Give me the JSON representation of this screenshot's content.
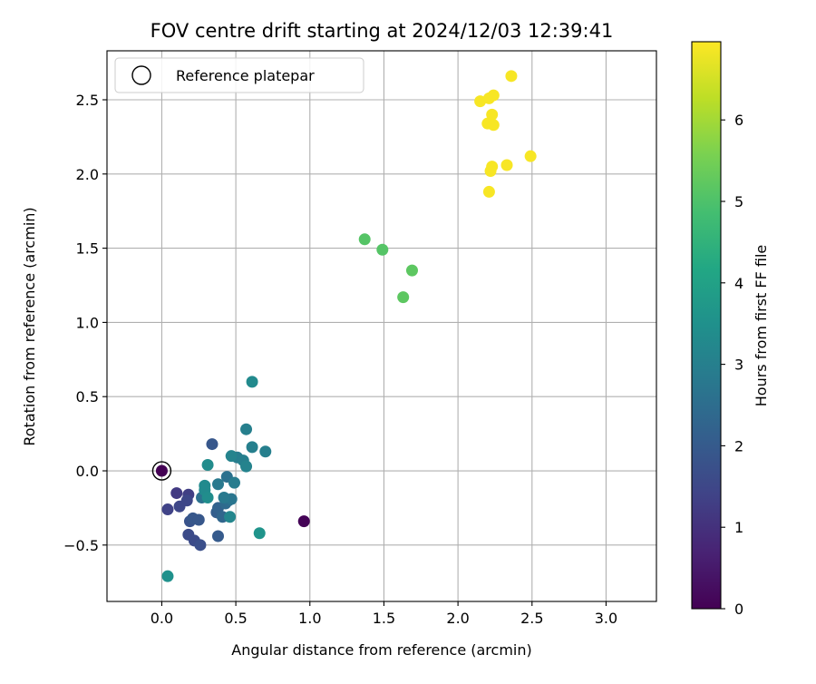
{
  "chart_data": {
    "type": "scatter",
    "title": "FOV centre drift starting at 2024/12/03 12:39:41",
    "xlabel": "Angular distance from reference (arcmin)",
    "ylabel": "Rotation from reference (arcmin)",
    "xlim": [
      -0.37,
      3.34
    ],
    "ylim": [
      -0.88,
      2.83
    ],
    "xticks": [
      0.0,
      0.5,
      1.0,
      1.5,
      2.0,
      2.5,
      3.0
    ],
    "xtick_labels": [
      "0.0",
      "0.5",
      "1.0",
      "1.5",
      "2.0",
      "2.5",
      "3.0"
    ],
    "yticks": [
      -0.5,
      0.0,
      0.5,
      1.0,
      1.5,
      2.0,
      2.5
    ],
    "ytick_labels": [
      "−0.5",
      "0.0",
      "0.5",
      "1.0",
      "1.5",
      "2.0",
      "2.5"
    ],
    "grid": true,
    "legend": {
      "position": "upper-left",
      "label": "Reference platepar"
    },
    "reference_point": {
      "x": 0.0,
      "y": 0.0
    },
    "colormap": "viridis",
    "colorbar": {
      "label": "Hours from first FF file",
      "range": [
        0,
        6.96
      ],
      "ticks": [
        0,
        1,
        2,
        3,
        4,
        5,
        6
      ],
      "tick_labels": [
        "0",
        "1",
        "2",
        "3",
        "4",
        "5",
        "6"
      ]
    },
    "points": [
      {
        "x": 0.0,
        "y": 0.0,
        "c": 0.0
      },
      {
        "x": 0.96,
        "y": -0.34,
        "c": 0.05
      },
      {
        "x": 0.1,
        "y": -0.15,
        "c": 1.2
      },
      {
        "x": 0.18,
        "y": -0.16,
        "c": 1.3
      },
      {
        "x": 0.04,
        "y": -0.26,
        "c": 1.4
      },
      {
        "x": 0.12,
        "y": -0.24,
        "c": 1.5
      },
      {
        "x": 0.17,
        "y": -0.2,
        "c": 1.5
      },
      {
        "x": 0.18,
        "y": -0.43,
        "c": 1.6
      },
      {
        "x": 0.22,
        "y": -0.47,
        "c": 1.6
      },
      {
        "x": 0.26,
        "y": -0.5,
        "c": 1.7
      },
      {
        "x": 0.19,
        "y": -0.34,
        "c": 1.8
      },
      {
        "x": 0.21,
        "y": -0.32,
        "c": 1.9
      },
      {
        "x": 0.25,
        "y": -0.33,
        "c": 1.9
      },
      {
        "x": 0.34,
        "y": 0.18,
        "c": 1.9
      },
      {
        "x": 0.38,
        "y": -0.44,
        "c": 2.0
      },
      {
        "x": 0.37,
        "y": -0.28,
        "c": 2.1
      },
      {
        "x": 0.38,
        "y": -0.25,
        "c": 2.2
      },
      {
        "x": 0.41,
        "y": -0.31,
        "c": 2.3
      },
      {
        "x": 0.43,
        "y": -0.22,
        "c": 2.4
      },
      {
        "x": 0.45,
        "y": -0.2,
        "c": 2.5
      },
      {
        "x": 0.27,
        "y": -0.18,
        "c": 2.6
      },
      {
        "x": 0.44,
        "y": -0.04,
        "c": 2.6
      },
      {
        "x": 0.47,
        "y": -0.19,
        "c": 2.7
      },
      {
        "x": 0.42,
        "y": -0.18,
        "c": 2.8
      },
      {
        "x": 0.38,
        "y": -0.09,
        "c": 2.8
      },
      {
        "x": 0.49,
        "y": -0.08,
        "c": 2.9
      },
      {
        "x": 0.51,
        "y": 0.09,
        "c": 2.9
      },
      {
        "x": 0.55,
        "y": 0.07,
        "c": 3.0
      },
      {
        "x": 0.57,
        "y": 0.28,
        "c": 3.0
      },
      {
        "x": 0.61,
        "y": 0.16,
        "c": 3.0
      },
      {
        "x": 0.7,
        "y": 0.13,
        "c": 3.0
      },
      {
        "x": 0.57,
        "y": 0.03,
        "c": 3.1
      },
      {
        "x": 0.47,
        "y": 0.1,
        "c": 3.1
      },
      {
        "x": 0.46,
        "y": -0.31,
        "c": 3.2
      },
      {
        "x": 0.61,
        "y": 0.6,
        "c": 3.3
      },
      {
        "x": 0.29,
        "y": -0.1,
        "c": 3.3
      },
      {
        "x": 0.29,
        "y": -0.13,
        "c": 3.3
      },
      {
        "x": 0.31,
        "y": 0.04,
        "c": 3.35
      },
      {
        "x": 0.31,
        "y": -0.18,
        "c": 3.4
      },
      {
        "x": 0.04,
        "y": -0.71,
        "c": 3.5
      },
      {
        "x": 0.66,
        "y": -0.42,
        "c": 3.6
      },
      {
        "x": 1.37,
        "y": 1.56,
        "c": 5.1
      },
      {
        "x": 1.49,
        "y": 1.49,
        "c": 5.1
      },
      {
        "x": 1.69,
        "y": 1.35,
        "c": 5.2
      },
      {
        "x": 1.63,
        "y": 1.17,
        "c": 5.2
      },
      {
        "x": 2.36,
        "y": 2.66,
        "c": 6.9
      },
      {
        "x": 2.15,
        "y": 2.49,
        "c": 6.9
      },
      {
        "x": 2.21,
        "y": 2.51,
        "c": 6.9
      },
      {
        "x": 2.24,
        "y": 2.53,
        "c": 6.9
      },
      {
        "x": 2.23,
        "y": 2.4,
        "c": 6.9
      },
      {
        "x": 2.2,
        "y": 2.34,
        "c": 6.9
      },
      {
        "x": 2.24,
        "y": 2.33,
        "c": 6.9
      },
      {
        "x": 2.49,
        "y": 2.12,
        "c": 6.9
      },
      {
        "x": 2.33,
        "y": 2.06,
        "c": 6.9
      },
      {
        "x": 2.23,
        "y": 2.05,
        "c": 6.9
      },
      {
        "x": 2.22,
        "y": 2.02,
        "c": 6.9
      },
      {
        "x": 2.21,
        "y": 1.88,
        "c": 6.9
      }
    ]
  }
}
